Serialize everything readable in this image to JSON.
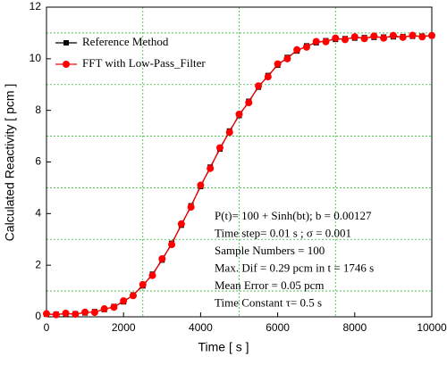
{
  "chart_data": {
    "type": "line",
    "xlabel": "Time [ s ]",
    "ylabel": "Calculated Reactivity [ pcm ]",
    "x": [
      0,
      250,
      500,
      750,
      1000,
      1250,
      1500,
      1750,
      2000,
      2250,
      2500,
      2750,
      3000,
      3250,
      3500,
      3750,
      4000,
      4250,
      4500,
      4750,
      5000,
      5250,
      5500,
      5750,
      6000,
      6250,
      6500,
      6750,
      7000,
      7250,
      7500,
      7750,
      8000,
      8250,
      8500,
      8750,
      9000,
      9250,
      9500,
      9750,
      10000
    ],
    "series": [
      {
        "name": "Reference Method",
        "color": "#000000",
        "marker": "square",
        "values": [
          0.1,
          0.1,
          0.11,
          0.12,
          0.15,
          0.2,
          0.28,
          0.4,
          0.58,
          0.85,
          1.2,
          1.65,
          2.2,
          2.85,
          3.55,
          4.3,
          5.05,
          5.8,
          6.5,
          7.2,
          7.8,
          8.35,
          8.9,
          9.35,
          9.75,
          10.05,
          10.3,
          10.5,
          10.62,
          10.7,
          10.75,
          10.78,
          10.8,
          10.82,
          10.83,
          10.84,
          10.85,
          10.86,
          10.87,
          10.88,
          10.89
        ]
      },
      {
        "name": "FFT with Low-Pass_Filter",
        "color": "#ff0000",
        "marker": "circle",
        "values": [
          0.12,
          0.08,
          0.14,
          0.1,
          0.18,
          0.17,
          0.31,
          0.37,
          0.62,
          0.82,
          1.25,
          1.6,
          2.25,
          2.8,
          3.6,
          4.25,
          5.1,
          5.75,
          6.55,
          7.15,
          7.85,
          8.3,
          8.95,
          9.3,
          9.8,
          10.0,
          10.35,
          10.45,
          10.67,
          10.66,
          10.8,
          10.74,
          10.85,
          10.78,
          10.88,
          10.8,
          10.9,
          10.83,
          10.91,
          10.85,
          10.9
        ]
      }
    ],
    "xlim": [
      0,
      10000
    ],
    "xticks": [
      0,
      2000,
      4000,
      6000,
      8000,
      10000
    ],
    "ylim": [
      0,
      12
    ],
    "yticks": [
      0,
      2,
      4,
      6,
      8,
      10,
      12
    ],
    "grid": true,
    "grid_color": "#33bb33",
    "xgrid": [
      2500,
      5000,
      7500
    ],
    "ygrid": [
      1,
      3,
      5,
      7,
      9,
      11
    ],
    "legend": "upper left",
    "annotations": [
      "P(t)= 100  + Sinh(bt); b = 0.00127",
      "Time step= 0.01 s  ; σ = 0.001",
      "Sample Numbers = 100",
      "Max. Dif  = 0.29 pcm  in t = 1746 s",
      "Mean Error =  0.05 pcm",
      "Time Constant τ= 0.5 s"
    ]
  }
}
